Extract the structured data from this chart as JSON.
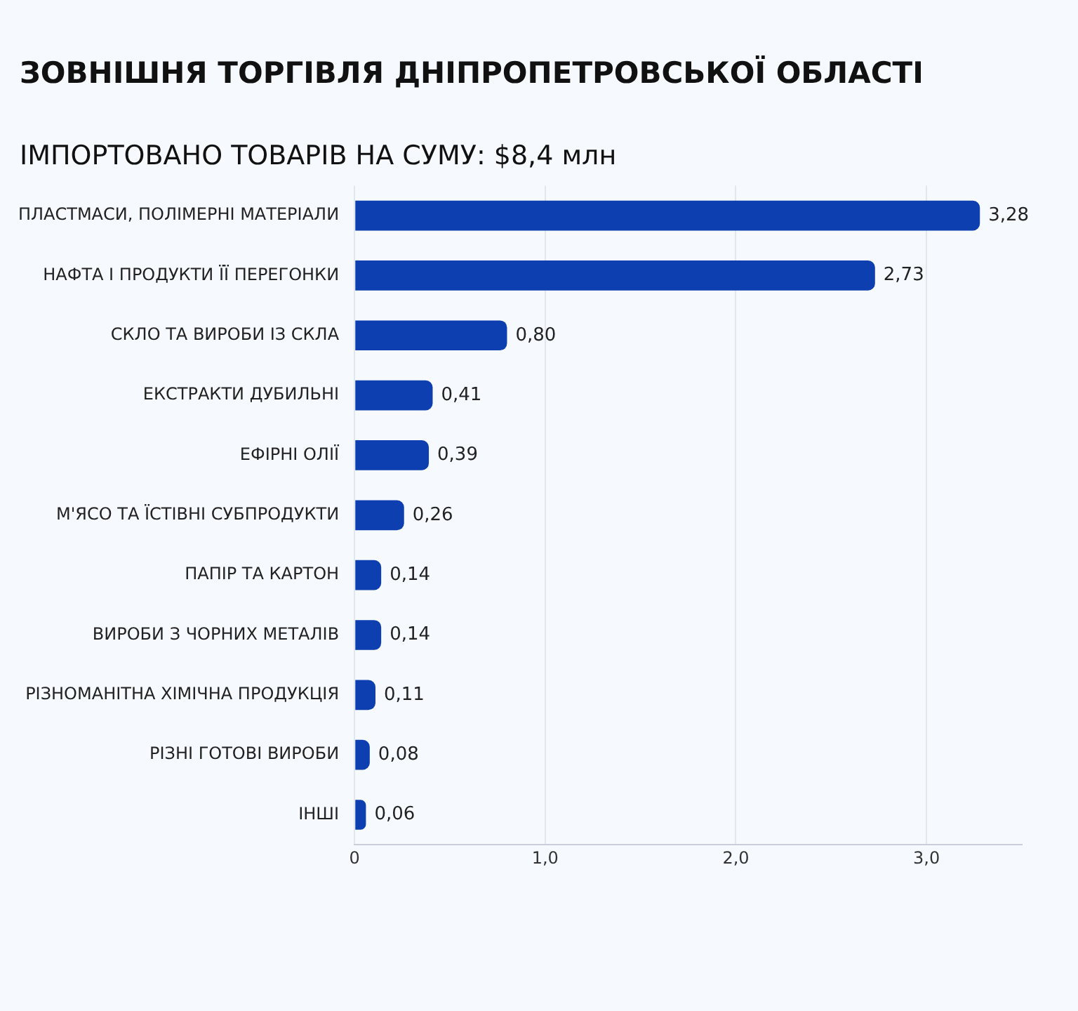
{
  "chart_data": {
    "type": "bar",
    "orientation": "horizontal",
    "title": "ЗОВНІШНЯ ТОРГІВЛЯ ДНІПРОПЕТРОВСЬКОЇ ОБЛАСТІ",
    "subtitle": "ІМПОРТОВАНО ТОВАРІВ НА СУМУ: $8,4 млн",
    "categories": [
      "ПЛАСТМАСИ, ПОЛІМЕРНІ МАТЕРІАЛИ",
      "НАФТА І ПРОДУКТИ ЇЇ ПЕРЕГОНКИ",
      "СКЛО ТА ВИРОБИ ІЗ СКЛА",
      "ЕКСТРАКТИ ДУБИЛЬНІ",
      "ЕФІРНІ ОЛІЇ",
      "М'ЯСО ТА ЇСТІВНІ СУБПРОДУКТИ",
      "ПАПІР ТА КАРТОН",
      "ВИРОБИ З ЧОРНИХ МЕТАЛІВ",
      "РІЗНОМАНІТНА ХІМІЧНА ПРОДУКЦІЯ",
      "РІЗНІ ГОТОВІ ВИРОБИ",
      "ІНШІ"
    ],
    "values": [
      3.28,
      2.73,
      0.8,
      0.41,
      0.39,
      0.26,
      0.14,
      0.14,
      0.11,
      0.08,
      0.06
    ],
    "color": "#0d3fb0",
    "xlim": [
      0,
      3.5
    ],
    "xticks": [
      0,
      {
        "value": 1,
        "label": "1,0"
      },
      {
        "value": 2,
        "label": "2,0"
      },
      {
        "value": 3,
        "label": "3,0"
      }
    ],
    "value_labels": [
      "3,28",
      "2,73",
      "0,80",
      "0,41",
      "0,39",
      "0,26",
      "0,14",
      "0,14",
      "0,11",
      "0,08",
      "0,06"
    ],
    "grid": "x"
  }
}
